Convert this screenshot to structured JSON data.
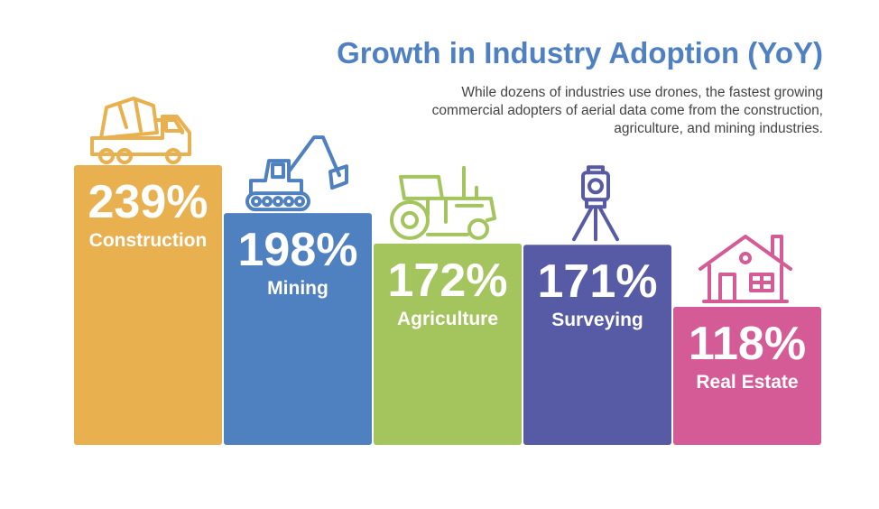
{
  "title": "Growth in Industry Adoption (YoY)",
  "subtitle": "While dozens of industries use drones, the fastest growing commercial adopters of aerial data come from the construction, agriculture, and mining industries.",
  "chart_data": {
    "type": "bar",
    "title": "Growth in Industry Adoption (YoY)",
    "xlabel": "",
    "ylabel": "",
    "unit": "%",
    "ylim": [
      0,
      239
    ],
    "categories": [
      "Construction",
      "Mining",
      "Agriculture",
      "Surveying",
      "Real Estate"
    ],
    "values": [
      239,
      198,
      172,
      171,
      118
    ],
    "labels": [
      "239%",
      "198%",
      "172%",
      "171%",
      "118%"
    ],
    "colors": [
      "#e8b04f",
      "#4f80c0",
      "#a4c45d",
      "#575ba5",
      "#d55b97"
    ],
    "icons": [
      "cement-mixer-truck-icon",
      "excavator-icon",
      "tractor-icon",
      "surveying-tripod-icon",
      "house-icon"
    ]
  }
}
